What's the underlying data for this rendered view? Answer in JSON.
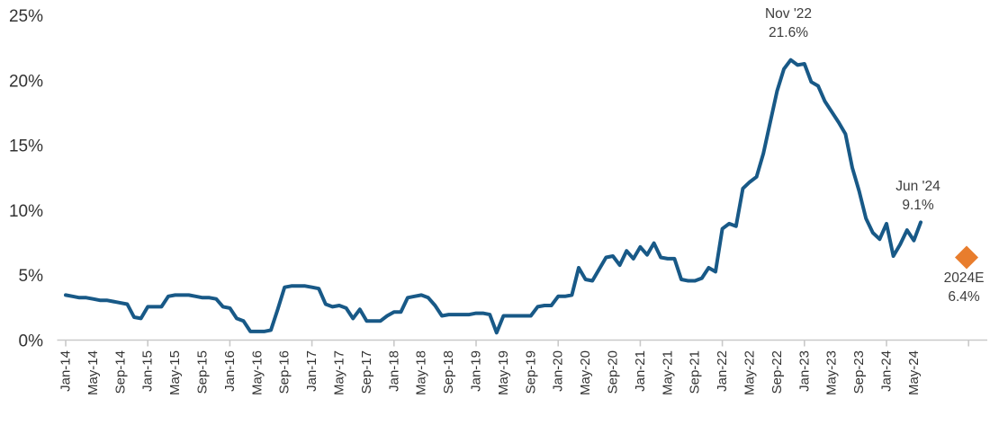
{
  "colors": {
    "line": "#185987",
    "forecast_marker": "#e87d2d",
    "axis": "#c9c9c9",
    "tick_text": "#333333",
    "annotation_text": "#3d3d3d"
  },
  "chart_data": {
    "type": "line",
    "title": "",
    "xlabel": "",
    "ylabel": "",
    "unit": "%",
    "ylim": [
      0,
      25
    ],
    "grid": "none",
    "legend": "none",
    "y_tick_labels": [
      "0%",
      "5%",
      "10%",
      "15%",
      "20%",
      "25%"
    ],
    "x_tick_labels": [
      "Jan-14",
      "May-14",
      "Sep-14",
      "Jan-15",
      "May-15",
      "Sep-15",
      "Jan-16",
      "May-16",
      "Sep-16",
      "Jan-17",
      "May-17",
      "Sep-17",
      "Jan-18",
      "May-18",
      "Sep-18",
      "Jan-19",
      "May-19",
      "Sep-19",
      "Jan-20",
      "May-20",
      "Sep-20",
      "Jan-21",
      "May-21",
      "Sep-21",
      "Jan-22",
      "May-22",
      "Sep-22",
      "Jan-23",
      "May-23",
      "Sep-23",
      "Jan-24",
      "May-24"
    ],
    "categories": [
      "Jan-14",
      "Feb-14",
      "Mar-14",
      "Apr-14",
      "May-14",
      "Jun-14",
      "Jul-14",
      "Aug-14",
      "Sep-14",
      "Oct-14",
      "Nov-14",
      "Dec-14",
      "Jan-15",
      "Feb-15",
      "Mar-15",
      "Apr-15",
      "May-15",
      "Jun-15",
      "Jul-15",
      "Aug-15",
      "Sep-15",
      "Oct-15",
      "Nov-15",
      "Dec-15",
      "Jan-16",
      "Feb-16",
      "Mar-16",
      "Apr-16",
      "May-16",
      "Jun-16",
      "Jul-16",
      "Aug-16",
      "Sep-16",
      "Oct-16",
      "Nov-16",
      "Dec-16",
      "Jan-17",
      "Feb-17",
      "Mar-17",
      "Apr-17",
      "May-17",
      "Jun-17",
      "Jul-17",
      "Aug-17",
      "Sep-17",
      "Oct-17",
      "Nov-17",
      "Dec-17",
      "Jan-18",
      "Feb-18",
      "Mar-18",
      "Apr-18",
      "May-18",
      "Jun-18",
      "Jul-18",
      "Aug-18",
      "Sep-18",
      "Oct-18",
      "Nov-18",
      "Dec-18",
      "Jan-19",
      "Feb-19",
      "Mar-19",
      "Apr-19",
      "May-19",
      "Jun-19",
      "Jul-19",
      "Aug-19",
      "Sep-19",
      "Oct-19",
      "Nov-19",
      "Dec-19",
      "Jan-20",
      "Feb-20",
      "Mar-20",
      "Apr-20",
      "May-20",
      "Jun-20",
      "Jul-20",
      "Aug-20",
      "Sep-20",
      "Oct-20",
      "Nov-20",
      "Dec-20",
      "Jan-21",
      "Feb-21",
      "Mar-21",
      "Apr-21",
      "May-21",
      "Jun-21",
      "Jul-21",
      "Aug-21",
      "Sep-21",
      "Oct-21",
      "Nov-21",
      "Dec-21",
      "Jan-22",
      "Feb-22",
      "Mar-22",
      "Apr-22",
      "May-22",
      "Jun-22",
      "Jul-22",
      "Aug-22",
      "Sep-22",
      "Oct-22",
      "Nov-22",
      "Dec-22",
      "Jan-23",
      "Feb-23",
      "Mar-23",
      "Apr-23",
      "May-23",
      "Jun-23",
      "Jul-23",
      "Aug-23",
      "Sep-23",
      "Oct-23",
      "Nov-23",
      "Dec-23",
      "Jan-24",
      "Feb-24",
      "Mar-24",
      "Apr-24",
      "May-24",
      "Jun-24"
    ],
    "series": [
      {
        "name": "monthly-rate",
        "values": [
          3.5,
          3.4,
          3.3,
          3.3,
          3.2,
          3.1,
          3.1,
          3.0,
          2.9,
          2.8,
          1.8,
          1.7,
          2.6,
          2.6,
          2.6,
          3.4,
          3.5,
          3.5,
          3.5,
          3.4,
          3.3,
          3.3,
          3.2,
          2.6,
          2.5,
          1.7,
          1.5,
          0.7,
          0.7,
          0.7,
          0.8,
          2.4,
          4.1,
          4.2,
          4.2,
          4.2,
          4.1,
          4.0,
          2.8,
          2.6,
          2.7,
          2.5,
          1.7,
          2.4,
          1.5,
          1.5,
          1.5,
          1.9,
          2.2,
          2.2,
          3.3,
          3.4,
          3.5,
          3.3,
          2.7,
          1.9,
          2.0,
          2.0,
          2.0,
          2.0,
          2.1,
          2.1,
          2.0,
          0.6,
          1.9,
          1.9,
          1.9,
          1.9,
          1.9,
          2.6,
          2.7,
          2.7,
          3.4,
          3.4,
          3.5,
          5.6,
          4.7,
          4.6,
          5.5,
          6.4,
          6.5,
          5.8,
          6.9,
          6.3,
          7.2,
          6.6,
          7.5,
          6.4,
          6.3,
          6.3,
          4.7,
          4.6,
          4.6,
          4.8,
          5.6,
          5.3,
          8.6,
          9.0,
          8.8,
          11.7,
          12.2,
          12.6,
          14.4,
          16.8,
          19.2,
          20.9,
          21.6,
          21.2,
          21.3,
          19.9,
          19.6,
          18.4,
          17.6,
          16.8,
          15.9,
          13.3,
          11.5,
          9.4,
          8.3,
          7.8,
          9.0,
          6.5,
          7.4,
          8.5,
          7.7,
          9.1
        ]
      }
    ],
    "annotations": {
      "peak": {
        "line1": "Nov '22",
        "line2": "21.6%",
        "month": "Nov-22",
        "value": 21.6
      },
      "last_actual": {
        "line1": "Jun '24",
        "line2": "9.1%",
        "month": "Jun-24",
        "value": 9.1
      },
      "forecast": {
        "line1": "2024E",
        "line2": "6.4%",
        "value": 6.4,
        "marker": "orange-diamond"
      }
    }
  }
}
